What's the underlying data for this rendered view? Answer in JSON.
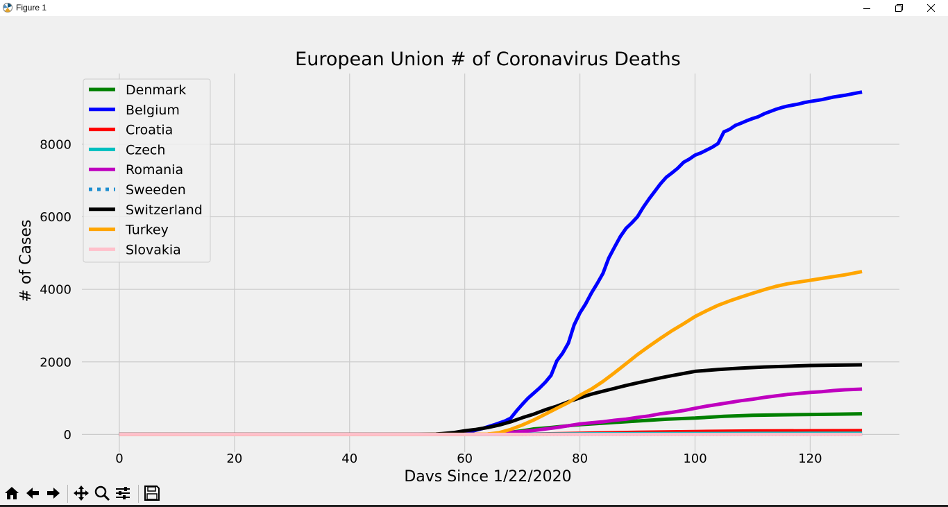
{
  "window": {
    "title": "Figure 1",
    "icons": {
      "app": "matplotlib-icon",
      "minimize": "minimize-icon",
      "maximize": "restore-icon",
      "close": "close-icon"
    }
  },
  "toolbar": {
    "buttons": [
      "home-icon",
      "back-arrow-icon",
      "forward-arrow-icon",
      "pan-icon",
      "zoom-icon",
      "configure-subplots-icon",
      "save-icon"
    ]
  },
  "chart_data": {
    "type": "line",
    "title": "European Union # of Coronavirus Deaths",
    "xlabel": "Davs Since 1/22/2020",
    "ylabel": "# of Cases",
    "xlim": [
      -6.5,
      135.5
    ],
    "ylim": [
      -490,
      9950
    ],
    "xticks": [
      0,
      20,
      40,
      60,
      80,
      100,
      120
    ],
    "yticks": [
      0,
      2000,
      4000,
      6000,
      8000
    ],
    "grid": true,
    "legend_position": "top-left",
    "series": [
      {
        "name": "Denmark",
        "color": "#008000",
        "style": "solid",
        "points": [
          [
            0,
            0
          ],
          [
            60,
            0
          ],
          [
            64,
            5
          ],
          [
            66,
            15
          ],
          [
            68,
            60
          ],
          [
            70,
            100
          ],
          [
            72,
            150
          ],
          [
            75,
            190
          ],
          [
            78,
            240
          ],
          [
            80,
            270
          ],
          [
            85,
            320
          ],
          [
            90,
            370
          ],
          [
            95,
            420
          ],
          [
            100,
            450
          ],
          [
            105,
            500
          ],
          [
            110,
            530
          ],
          [
            115,
            540
          ],
          [
            120,
            550
          ],
          [
            125,
            560
          ],
          [
            129,
            570
          ]
        ]
      },
      {
        "name": "Belgium",
        "color": "#0000ff",
        "style": "solid",
        "points": [
          [
            0,
            0
          ],
          [
            50,
            0
          ],
          [
            55,
            5
          ],
          [
            58,
            30
          ],
          [
            61,
            80
          ],
          [
            63,
            160
          ],
          [
            65,
            260
          ],
          [
            67,
            370
          ],
          [
            68,
            450
          ],
          [
            69,
            650
          ],
          [
            70,
            830
          ],
          [
            71,
            1000
          ],
          [
            72,
            1140
          ],
          [
            73,
            1280
          ],
          [
            74,
            1440
          ],
          [
            75,
            1630
          ],
          [
            76,
            2030
          ],
          [
            77,
            2240
          ],
          [
            78,
            2520
          ],
          [
            79,
            3020
          ],
          [
            80,
            3350
          ],
          [
            81,
            3600
          ],
          [
            82,
            3900
          ],
          [
            83,
            4160
          ],
          [
            84,
            4440
          ],
          [
            85,
            4860
          ],
          [
            86,
            5160
          ],
          [
            87,
            5450
          ],
          [
            88,
            5680
          ],
          [
            89,
            5830
          ],
          [
            90,
            6000
          ],
          [
            91,
            6260
          ],
          [
            92,
            6490
          ],
          [
            93,
            6700
          ],
          [
            94,
            6910
          ],
          [
            95,
            7090
          ],
          [
            96,
            7210
          ],
          [
            97,
            7340
          ],
          [
            98,
            7500
          ],
          [
            99,
            7590
          ],
          [
            100,
            7700
          ],
          [
            101,
            7760
          ],
          [
            102,
            7840
          ],
          [
            103,
            7920
          ],
          [
            104,
            8020
          ],
          [
            105,
            8340
          ],
          [
            106,
            8410
          ],
          [
            107,
            8520
          ],
          [
            108,
            8580
          ],
          [
            109,
            8650
          ],
          [
            110,
            8710
          ],
          [
            111,
            8760
          ],
          [
            112,
            8840
          ],
          [
            113,
            8900
          ],
          [
            114,
            8960
          ],
          [
            115,
            9010
          ],
          [
            116,
            9050
          ],
          [
            117,
            9080
          ],
          [
            118,
            9110
          ],
          [
            119,
            9150
          ],
          [
            120,
            9180
          ],
          [
            122,
            9230
          ],
          [
            124,
            9300
          ],
          [
            126,
            9350
          ],
          [
            128,
            9410
          ],
          [
            129,
            9440
          ]
        ]
      },
      {
        "name": "Croatia",
        "color": "#ff0000",
        "style": "solid",
        "points": [
          [
            0,
            0
          ],
          [
            65,
            0
          ],
          [
            70,
            5
          ],
          [
            80,
            30
          ],
          [
            90,
            60
          ],
          [
            100,
            80
          ],
          [
            110,
            95
          ],
          [
            120,
            100
          ],
          [
            129,
            105
          ]
        ]
      },
      {
        "name": "Czech",
        "color": "#00bfbf",
        "style": "solid",
        "points": [
          [
            0,
            0
          ],
          [
            65,
            0
          ],
          [
            70,
            5
          ],
          [
            80,
            15
          ],
          [
            90,
            20
          ],
          [
            100,
            25
          ],
          [
            110,
            28
          ],
          [
            120,
            30
          ],
          [
            129,
            30
          ]
        ]
      },
      {
        "name": "Romania",
        "color": "#bf00bf",
        "style": "solid",
        "points": [
          [
            0,
            0
          ],
          [
            60,
            0
          ],
          [
            64,
            10
          ],
          [
            66,
            30
          ],
          [
            68,
            60
          ],
          [
            70,
            80
          ],
          [
            72,
            110
          ],
          [
            74,
            150
          ],
          [
            76,
            190
          ],
          [
            78,
            240
          ],
          [
            80,
            290
          ],
          [
            82,
            320
          ],
          [
            84,
            350
          ],
          [
            86,
            390
          ],
          [
            88,
            420
          ],
          [
            90,
            470
          ],
          [
            92,
            510
          ],
          [
            94,
            570
          ],
          [
            96,
            610
          ],
          [
            98,
            660
          ],
          [
            100,
            720
          ],
          [
            102,
            780
          ],
          [
            104,
            830
          ],
          [
            106,
            880
          ],
          [
            108,
            930
          ],
          [
            110,
            970
          ],
          [
            112,
            1020
          ],
          [
            114,
            1060
          ],
          [
            116,
            1100
          ],
          [
            118,
            1130
          ],
          [
            120,
            1160
          ],
          [
            122,
            1180
          ],
          [
            124,
            1210
          ],
          [
            126,
            1230
          ],
          [
            129,
            1250
          ]
        ]
      },
      {
        "name": "Sweeden",
        "color": "#1f8fd0",
        "style": "dotted",
        "points": [
          [
            0,
            0
          ],
          [
            129,
            0
          ]
        ]
      },
      {
        "name": "Switzerland",
        "color": "#000000",
        "style": "solid",
        "points": [
          [
            0,
            0
          ],
          [
            52,
            0
          ],
          [
            55,
            10
          ],
          [
            58,
            50
          ],
          [
            60,
            100
          ],
          [
            62,
            140
          ],
          [
            64,
            190
          ],
          [
            66,
            260
          ],
          [
            68,
            350
          ],
          [
            70,
            460
          ],
          [
            72,
            560
          ],
          [
            74,
            680
          ],
          [
            76,
            780
          ],
          [
            78,
            900
          ],
          [
            80,
            1010
          ],
          [
            82,
            1110
          ],
          [
            84,
            1190
          ],
          [
            86,
            1270
          ],
          [
            88,
            1350
          ],
          [
            90,
            1420
          ],
          [
            92,
            1490
          ],
          [
            94,
            1560
          ],
          [
            96,
            1620
          ],
          [
            98,
            1680
          ],
          [
            100,
            1740
          ],
          [
            104,
            1790
          ],
          [
            108,
            1830
          ],
          [
            112,
            1860
          ],
          [
            116,
            1880
          ],
          [
            120,
            1900
          ],
          [
            124,
            1910
          ],
          [
            129,
            1920
          ]
        ]
      },
      {
        "name": "Turkey",
        "color": "#ffa500",
        "style": "solid",
        "points": [
          [
            0,
            0
          ],
          [
            60,
            0
          ],
          [
            64,
            10
          ],
          [
            66,
            50
          ],
          [
            68,
            140
          ],
          [
            70,
            260
          ],
          [
            72,
            400
          ],
          [
            74,
            560
          ],
          [
            76,
            720
          ],
          [
            78,
            880
          ],
          [
            80,
            1080
          ],
          [
            82,
            1250
          ],
          [
            84,
            1460
          ],
          [
            86,
            1700
          ],
          [
            88,
            1950
          ],
          [
            90,
            2200
          ],
          [
            92,
            2430
          ],
          [
            94,
            2650
          ],
          [
            96,
            2860
          ],
          [
            98,
            3050
          ],
          [
            100,
            3250
          ],
          [
            102,
            3410
          ],
          [
            104,
            3560
          ],
          [
            106,
            3680
          ],
          [
            108,
            3790
          ],
          [
            110,
            3890
          ],
          [
            112,
            3990
          ],
          [
            114,
            4080
          ],
          [
            116,
            4150
          ],
          [
            118,
            4200
          ],
          [
            120,
            4250
          ],
          [
            122,
            4300
          ],
          [
            124,
            4350
          ],
          [
            126,
            4400
          ],
          [
            129,
            4490
          ]
        ]
      },
      {
        "name": "Slovakia",
        "color": "#ffc0cb",
        "style": "solid",
        "points": [
          [
            0,
            0
          ],
          [
            129,
            0
          ]
        ]
      }
    ]
  }
}
